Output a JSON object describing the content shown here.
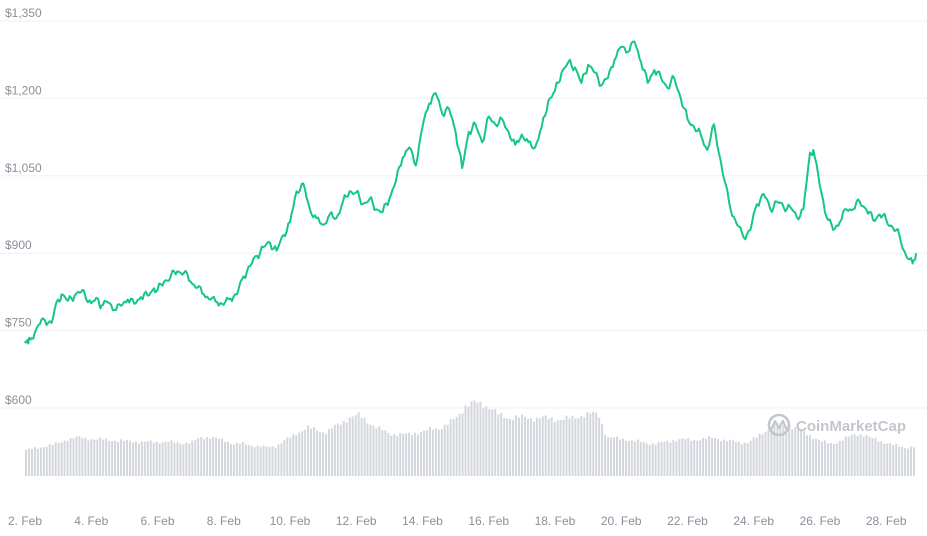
{
  "chart_data": {
    "type": "line",
    "x_unit": "day of February",
    "y_unit": "USD",
    "ylim": [
      600,
      1350
    ],
    "y_ticks": [
      600,
      750,
      900,
      1050,
      1200,
      1350
    ],
    "y_tick_labels": [
      "$600",
      "$750",
      "$900",
      "$1,050",
      "$1,200",
      "$1,350"
    ],
    "xlim": [
      2,
      28.9
    ],
    "x_ticks": [
      2,
      4,
      6,
      8,
      10,
      12,
      14,
      16,
      18,
      20,
      22,
      24,
      26,
      28
    ],
    "x_tick_labels": [
      "2. Feb",
      "4. Feb",
      "6. Feb",
      "8. Feb",
      "10. Feb",
      "12. Feb",
      "14. Feb",
      "16. Feb",
      "18. Feb",
      "20. Feb",
      "22. Feb",
      "24. Feb",
      "26. Feb",
      "28. Feb"
    ],
    "grid": true,
    "series": [
      {
        "type": "line",
        "color": "#16c784",
        "x": [
          2.0,
          2.1,
          2.2,
          2.4,
          2.6,
          2.8,
          3.0,
          3.1,
          3.3,
          3.5,
          3.7,
          3.8,
          4.0,
          4.2,
          4.3,
          4.5,
          4.7,
          4.9,
          5.1,
          5.3,
          5.5,
          5.7,
          5.9,
          6.0,
          6.2,
          6.4,
          6.6,
          6.8,
          7.0,
          7.2,
          7.4,
          7.6,
          7.8,
          8.0,
          8.2,
          8.4,
          8.6,
          8.8,
          9.0,
          9.2,
          9.4,
          9.6,
          9.8,
          10.0,
          10.2,
          10.4,
          10.6,
          10.8,
          11.0,
          11.2,
          11.4,
          11.6,
          11.8,
          12.0,
          12.2,
          12.4,
          12.6,
          12.8,
          13.0,
          13.2,
          13.4,
          13.6,
          13.8,
          14.0,
          14.2,
          14.4,
          14.6,
          14.8,
          15.0,
          15.2,
          15.4,
          15.6,
          15.8,
          16.0,
          16.2,
          16.4,
          16.6,
          16.8,
          17.0,
          17.2,
          17.4,
          17.6,
          17.8,
          18.0,
          18.2,
          18.4,
          18.6,
          18.8,
          19.0,
          19.2,
          19.4,
          19.6,
          19.8,
          20.0,
          20.2,
          20.4,
          20.6,
          20.8,
          21.0,
          21.2,
          21.4,
          21.6,
          21.8,
          22.0,
          22.2,
          22.4,
          22.6,
          22.8,
          23.0,
          23.1,
          23.3,
          23.5,
          23.7,
          23.9,
          24.1,
          24.3,
          24.5,
          24.7,
          24.9,
          25.1,
          25.3,
          25.5,
          25.7,
          25.8,
          26.0,
          26.2,
          26.4,
          26.6,
          26.8,
          27.0,
          27.2,
          27.4,
          27.6,
          27.8,
          28.0,
          28.2,
          28.4,
          28.6,
          28.8,
          28.9
        ],
        "y": [
          730,
          725,
          735,
          760,
          770,
          765,
          810,
          820,
          808,
          818,
          825,
          822,
          803,
          812,
          798,
          805,
          790,
          798,
          810,
          802,
          815,
          818,
          832,
          828,
          845,
          855,
          865,
          862,
          845,
          833,
          820,
          810,
          805,
          800,
          812,
          820,
          855,
          875,
          895,
          912,
          920,
          905,
          935,
          960,
          1020,
          1035,
          985,
          968,
          955,
          975,
          968,
          1000,
          1020,
          1018,
          995,
          1005,
          985,
          980,
          1005,
          1040,
          1085,
          1105,
          1070,
          1145,
          1190,
          1210,
          1170,
          1180,
          1135,
          1065,
          1135,
          1150,
          1115,
          1165,
          1150,
          1160,
          1135,
          1110,
          1130,
          1115,
          1105,
          1145,
          1195,
          1215,
          1250,
          1270,
          1260,
          1230,
          1265,
          1250,
          1225,
          1240,
          1275,
          1300,
          1290,
          1310,
          1270,
          1230,
          1255,
          1240,
          1220,
          1240,
          1200,
          1160,
          1145,
          1130,
          1100,
          1150,
          1080,
          1045,
          985,
          955,
          930,
          945,
          995,
          1015,
          985,
          1000,
          990,
          990,
          970,
          985,
          1095,
          1100,
          1030,
          970,
          945,
          960,
          985,
          985,
          1000,
          985,
          965,
          975,
          965,
          950,
          935,
          895,
          880,
          900
        ]
      }
    ],
    "volume": {
      "relative_heights": [
        0.42,
        0.44,
        0.47,
        0.5,
        0.53,
        0.6,
        0.62,
        0.61,
        0.6,
        0.59,
        0.58,
        0.57,
        0.56,
        0.56,
        0.55,
        0.55,
        0.55,
        0.55,
        0.54,
        0.53,
        0.54,
        0.62,
        0.63,
        0.6,
        0.57,
        0.52,
        0.52,
        0.5,
        0.48,
        0.46,
        0.48,
        0.56,
        0.63,
        0.72,
        0.78,
        0.74,
        0.7,
        0.78,
        0.85,
        0.95,
        0.98,
        0.9,
        0.8,
        0.73,
        0.68,
        0.67,
        0.67,
        0.7,
        0.72,
        0.76,
        0.78,
        0.85,
        0.96,
        1.14,
        1.18,
        1.16,
        1.1,
        0.98,
        0.94,
        0.95,
        0.94,
        0.93,
        0.94,
        0.93,
        0.91,
        0.92,
        0.94,
        0.98,
        1.0,
        1.0,
        0.62,
        0.61,
        0.6,
        0.57,
        0.55,
        0.53,
        0.52,
        0.55,
        0.58,
        0.59,
        0.58,
        0.59,
        0.6,
        0.62,
        0.58,
        0.56,
        0.54,
        0.54,
        0.62,
        0.72,
        0.8,
        0.82,
        0.82,
        0.75,
        0.68,
        0.62,
        0.55,
        0.52,
        0.56,
        0.62,
        0.68,
        0.66,
        0.6,
        0.56,
        0.52,
        0.48,
        0.46,
        0.47
      ]
    }
  },
  "watermark": {
    "brand": "CoinMarketCap",
    "icon": "coinmarketcap-logo-icon"
  },
  "colors": {
    "price_line": "#16c784",
    "volume_bars": "#d3d6dc",
    "grid": "#eef0f3",
    "tick_text": "#8a8f99",
    "watermark": "#c3c6cc"
  }
}
